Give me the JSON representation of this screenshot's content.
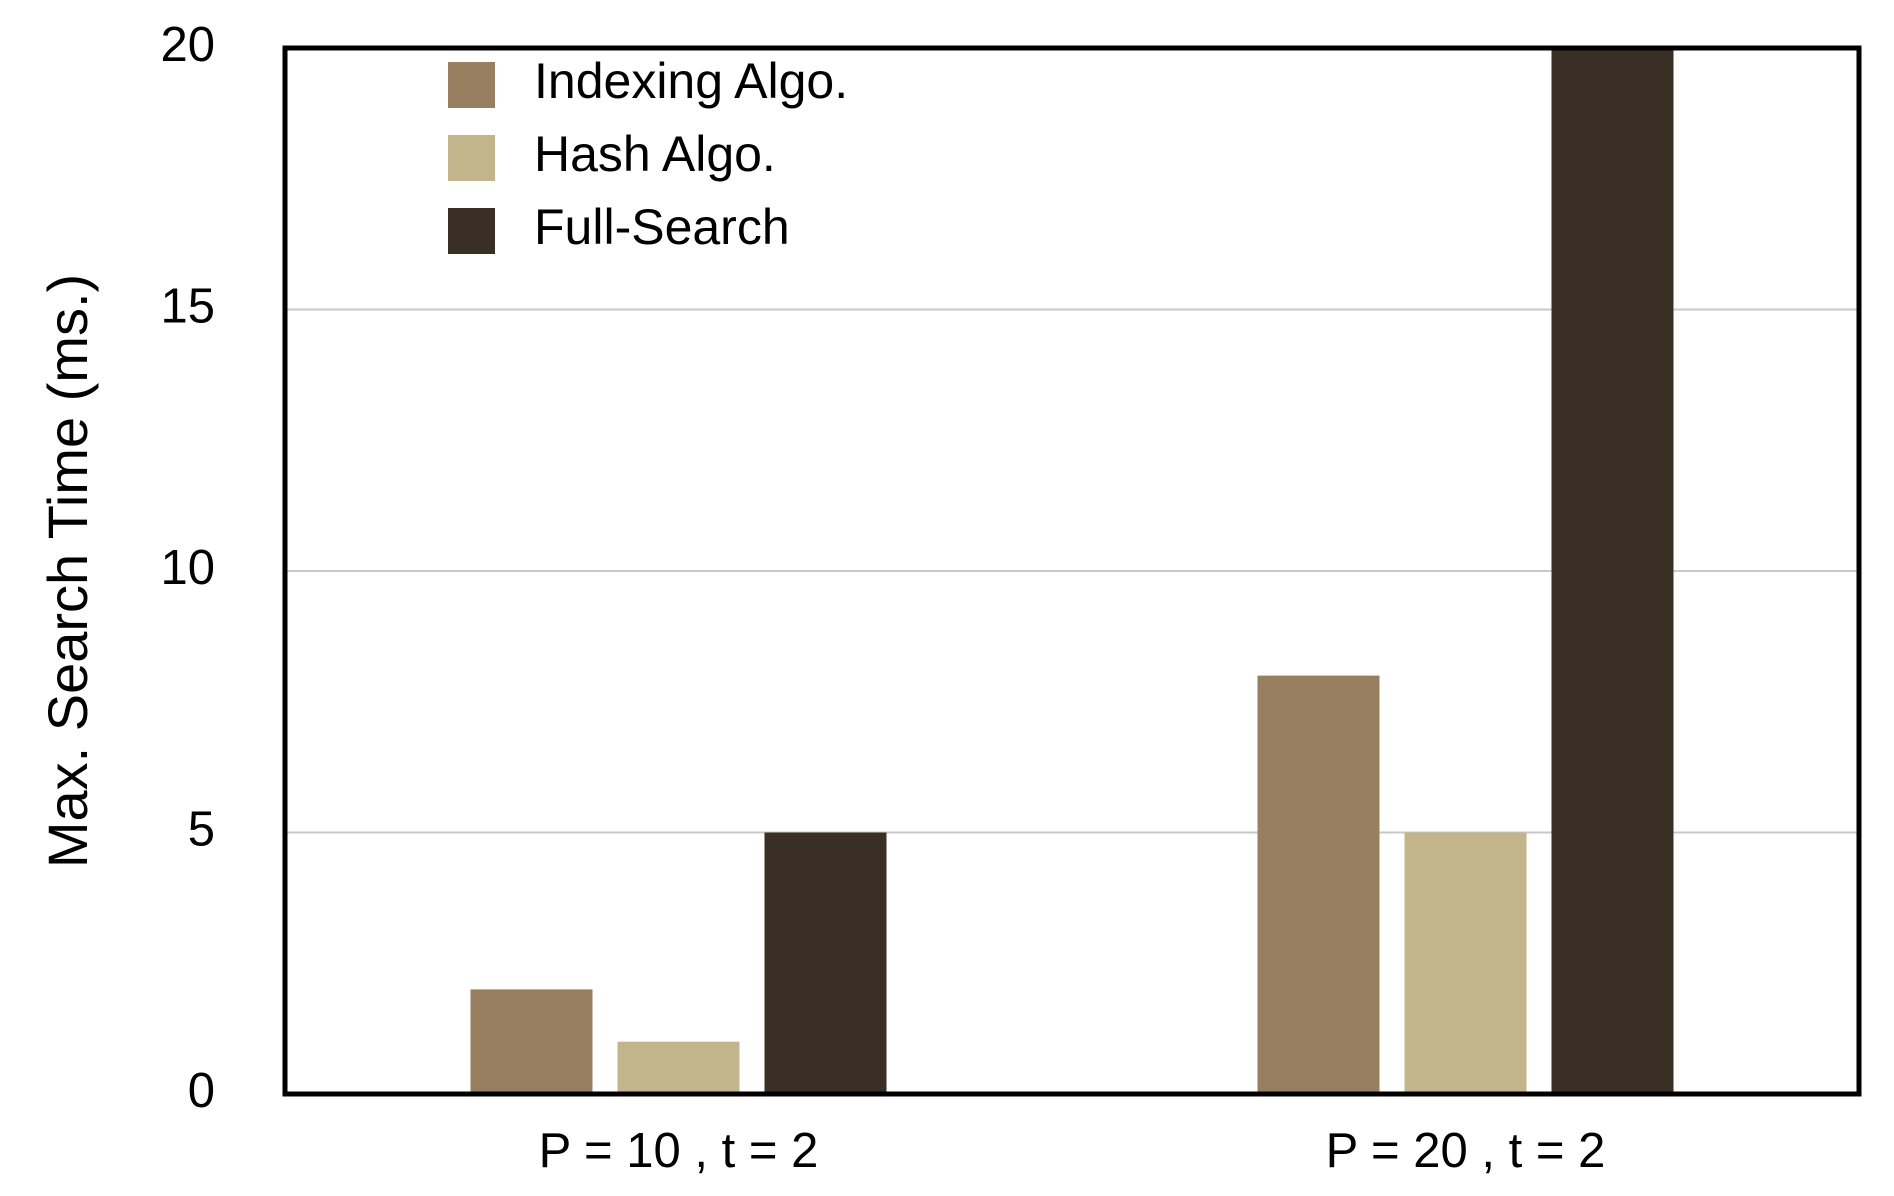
{
  "chart_data": {
    "type": "bar",
    "y_label": "Max. Search Time (ms.)",
    "categories": [
      "P = 10 , t = 2",
      "P = 20 , t = 2"
    ],
    "series": [
      {
        "name": "Indexing Algo.",
        "color": "#977f60",
        "values": [
          2,
          8
        ]
      },
      {
        "name": "Hash Algo.",
        "color": "#c2b48b",
        "values": [
          1,
          5
        ]
      },
      {
        "name": "Full-Search",
        "color": "#3a2f25",
        "values": [
          5,
          20
        ]
      }
    ],
    "ylim": [
      0,
      20
    ],
    "yticks": [
      0,
      5,
      10,
      15,
      20
    ],
    "grid": true,
    "legend": "upper-left"
  }
}
